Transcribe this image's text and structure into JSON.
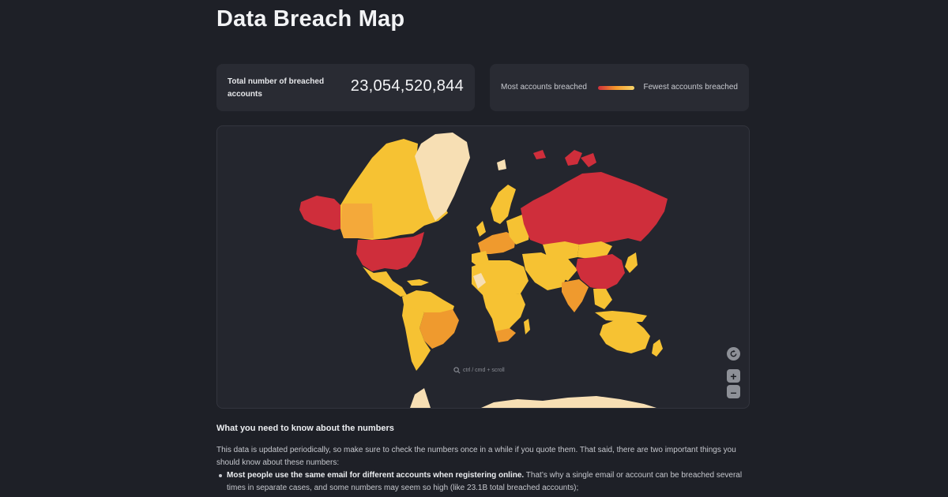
{
  "page": {
    "title": "Data Breach Map"
  },
  "stat": {
    "label": "Total number of breached accounts",
    "value": "23,054,520,844"
  },
  "legend": {
    "most_label": "Most accounts breached",
    "fewest_label": "Fewest accounts breached",
    "colors": [
      "#cf2e3b",
      "#f59a2c",
      "#f7d56a"
    ]
  },
  "map": {
    "zoom_hint": "ctrl / cmd + scroll",
    "reset_icon": "refresh-icon",
    "zoom_in_label": "+",
    "zoom_out_label": "–",
    "colors": {
      "most": "#cf2e3b",
      "high": "#ef9a2e",
      "medium": "#f6c233",
      "low": "#f7d56a",
      "fewest": "#f7dfb4",
      "ocean": "#24262e"
    }
  },
  "info": {
    "heading": "What you need to know about the numbers",
    "paragraph": "This data is updated periodically, so make sure to check the numbers once in a while if you quote them. That said, there are two important things you should know about these numbers:",
    "bullet_bold": "Most people use the same email for different accounts when registering online.",
    "bullet_text": " That’s why a single email or account can be breached several times in separate cases, and some numbers may seem so high (like 23.1B total breached accounts);"
  }
}
